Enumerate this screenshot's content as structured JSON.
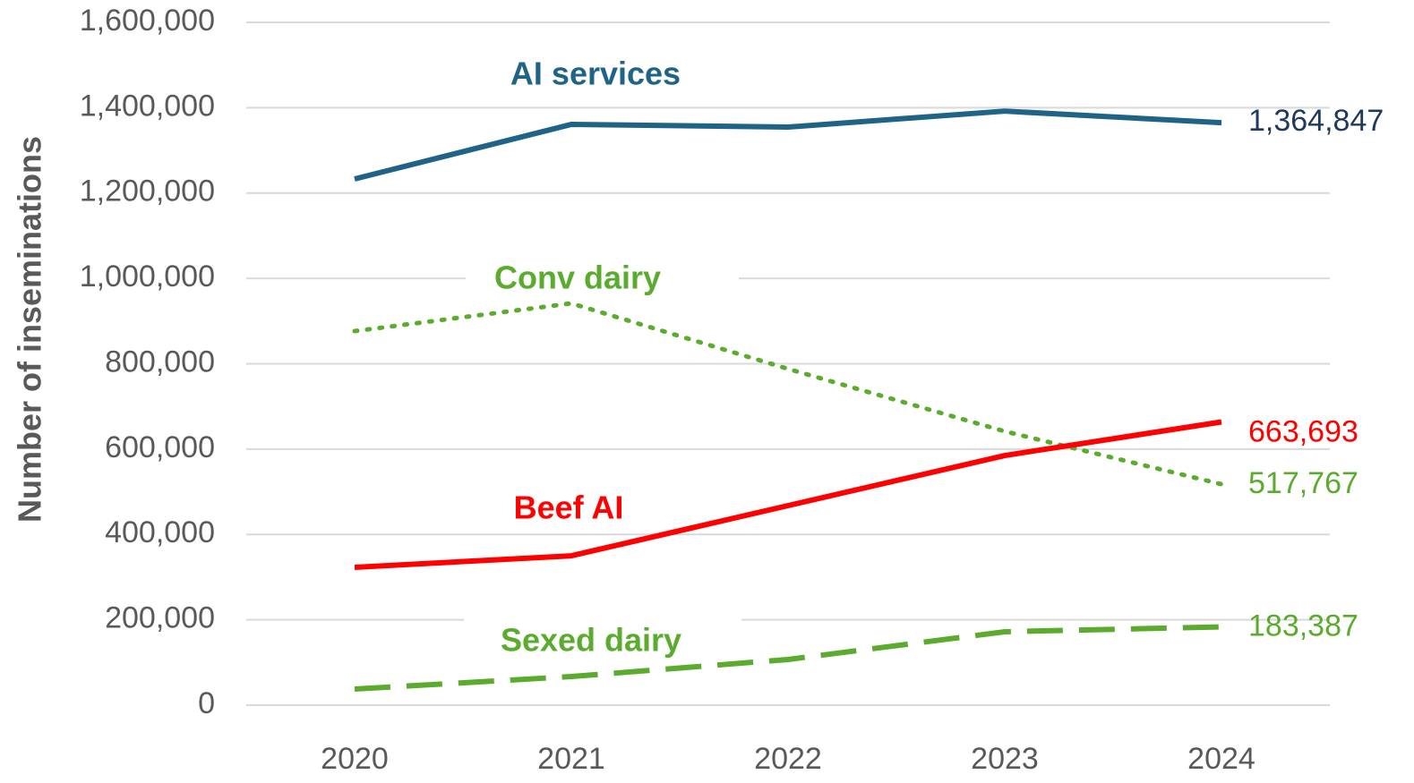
{
  "chart_data": {
    "type": "line",
    "y_label": "Number of inseminations",
    "categories": [
      "2020",
      "2021",
      "2022",
      "2023",
      "2024"
    ],
    "ylim": [
      0,
      1600000
    ],
    "yticks": [
      0,
      {
        "value": 200000,
        "label": "200,000"
      },
      {
        "value": 400000,
        "label": "400,000"
      },
      {
        "value": 600000,
        "label": "600,000"
      },
      {
        "value": 800000,
        "label": "800,000"
      },
      {
        "value": 1000000,
        "label": "1,000,000"
      },
      {
        "value": 1200000,
        "label": "1,200,000"
      },
      {
        "value": 1400000,
        "label": "1,400,000"
      },
      {
        "value": 1600000,
        "label": "1,600,000"
      }
    ],
    "grid": true,
    "series": [
      {
        "name": "AI services",
        "color": "#1f6386",
        "dash": "solid",
        "values": [
          1233000,
          1361000,
          1354600,
          1392000,
          1364847
        ],
        "value_labels": [
          null,
          null,
          null,
          null,
          "1,364,847"
        ]
      },
      {
        "name": "Conv dairy",
        "color": "#5aab2e",
        "dash": "dotted",
        "values": [
          876500,
          941500,
          788000,
          641600,
          517767
        ],
        "value_labels": [
          null,
          null,
          null,
          null,
          "517,767"
        ]
      },
      {
        "name": "Beef AI",
        "color": "#ff0000",
        "dash": "solid",
        "values": [
          323000,
          350000,
          467600,
          585000,
          663693
        ],
        "value_labels": [
          null,
          null,
          null,
          null,
          "663,693"
        ]
      },
      {
        "name": "Sexed dairy",
        "color": "#5aab2e",
        "dash": "dashed",
        "values": [
          37700,
          67000,
          107000,
          172000,
          183387
        ],
        "value_labels": [
          null,
          null,
          null,
          null,
          "183,387"
        ]
      }
    ]
  }
}
